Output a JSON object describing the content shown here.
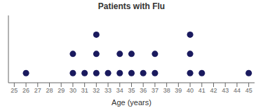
{
  "chart_data": {
    "type": "dot",
    "title": "Patients with Flu",
    "x_label": "Age (years)",
    "x": [
      26,
      30,
      31,
      32,
      33,
      34,
      35,
      36,
      37,
      40,
      41,
      45
    ],
    "values": [
      1,
      2,
      1,
      3,
      1,
      2,
      2,
      1,
      2,
      3,
      1,
      1
    ],
    "color": "#1a1a5e",
    "xlim": [
      24.5,
      45.5
    ],
    "ylim": [
      0.5,
      4.0
    ],
    "xticks": [
      25,
      26,
      27,
      28,
      29,
      30,
      31,
      32,
      33,
      34,
      35,
      36,
      37,
      38,
      39,
      40,
      41,
      42,
      43,
      44,
      45
    ],
    "tick_labels": "x"
  }
}
